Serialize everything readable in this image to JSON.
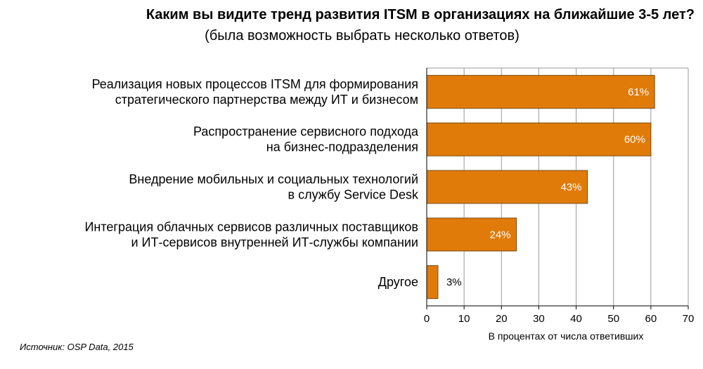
{
  "chart_data": {
    "type": "bar",
    "orientation": "horizontal",
    "title": "Каким вы видите тренд развития ITSM в организациях на ближайшие 3-5 лет?",
    "subtitle": "(была возможность выбрать несколько ответов)",
    "categories": [
      [
        "Реализация новых процессов ITSM для формирования",
        "стратегического партнерства между ИТ и бизнесом"
      ],
      [
        "Распространение сервисного подхода",
        "на бизнес-подразделения"
      ],
      [
        "Внедрение мобильных и социальных технологий",
        "в службу Service Desk"
      ],
      [
        "Интеграция облачных сервисов различных поставщиков",
        "и ИТ-сервисов внутренней ИТ-службы компании"
      ],
      [
        "Другое"
      ]
    ],
    "values": [
      61,
      60,
      43,
      24,
      3
    ],
    "value_labels": [
      "61%",
      "60%",
      "43%",
      "24%",
      "3%"
    ],
    "xlim": [
      0,
      70
    ],
    "xticks": [
      0,
      10,
      20,
      30,
      40,
      50,
      60,
      70
    ],
    "xlabel": "В процентах от числа ответивших",
    "grid": true,
    "colors": {
      "bar": "#e07b0a",
      "bar_edge": "#7a4a10",
      "grid": "#999999",
      "axis": "#000000"
    }
  },
  "source": "Источник: OSP Data, 2015"
}
